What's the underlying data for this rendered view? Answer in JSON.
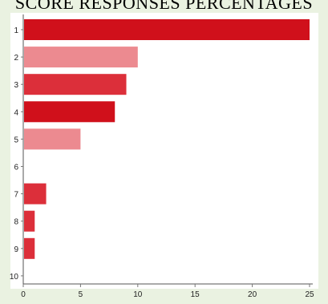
{
  "chart_data": {
    "type": "bar",
    "orientation": "horizontal",
    "title": "SCORE RESPONSES PERCENTAGES",
    "categories": [
      "1",
      "2",
      "3",
      "4",
      "5",
      "6",
      "7",
      "8",
      "9",
      "10"
    ],
    "values": [
      25,
      10,
      9,
      8,
      5,
      0,
      2,
      1,
      1,
      0
    ],
    "bar_colors": [
      "#d0101b",
      "#ec8a90",
      "#dc2f3a",
      "#d0101b",
      "#ec8a90",
      "#ec8a90",
      "#dc2f3a",
      "#dc2f3a",
      "#dc2f3a",
      "#dc2f3a"
    ],
    "x_ticks": [
      "0",
      "5",
      "10",
      "15",
      "20",
      "25"
    ],
    "xlim": [
      0,
      25
    ],
    "grid": false,
    "legend": "none"
  }
}
